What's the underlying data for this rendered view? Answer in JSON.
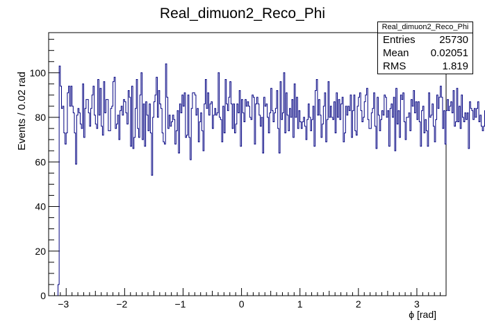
{
  "chart_data": {
    "type": "histogram",
    "title": "Real_dimuon2_Reco_Phi",
    "xlabel": "ϕ [rad]",
    "ylabel": "Events / 0.02 rad",
    "xlim": [
      -3.3,
      3.5
    ],
    "ylim": [
      0,
      118
    ],
    "bin_width": 0.02,
    "x_ticks": [
      "−3",
      "−2",
      "−1",
      "0",
      "1",
      "2",
      "3"
    ],
    "y_ticks": [
      "0",
      "20",
      "40",
      "60",
      "80",
      "100"
    ],
    "line_color": "#000080",
    "x_start": -3.14,
    "values": [
      5,
      103,
      94,
      84,
      85,
      73,
      68,
      73,
      91,
      94,
      85,
      94,
      85,
      82,
      73,
      59,
      81,
      84,
      82,
      77,
      75,
      95,
      71,
      84,
      88,
      88,
      82,
      76,
      84,
      90,
      94,
      81,
      77,
      75,
      97,
      81,
      93,
      76,
      72,
      96,
      82,
      88,
      88,
      74,
      74,
      84,
      85,
      96,
      98,
      75,
      77,
      81,
      70,
      83,
      85,
      81,
      88,
      87,
      82,
      77,
      92,
      89,
      67,
      94,
      66,
      71,
      84,
      97,
      75,
      71,
      90,
      100,
      70,
      86,
      67,
      87,
      81,
      74,
      86,
      73,
      54,
      80,
      87,
      90,
      98,
      80,
      92,
      86,
      84,
      73,
      69,
      68,
      104,
      89,
      75,
      81,
      76,
      78,
      81,
      79,
      68,
      74,
      83,
      64,
      86,
      82,
      90,
      85,
      91,
      71,
      72,
      90,
      71,
      61,
      84,
      91,
      91,
      90,
      81,
      84,
      69,
      78,
      82,
      74,
      65,
      86,
      97,
      84,
      91,
      81,
      86,
      87,
      75,
      81,
      84,
      81,
      82,
      100,
      80,
      79,
      69,
      85,
      73,
      97,
      86,
      83,
      89,
      96,
      86,
      75,
      86,
      73,
      77,
      86,
      82,
      92,
      67,
      88,
      82,
      78,
      88,
      85,
      87,
      85,
      80,
      79,
      90,
      89,
      68,
      86,
      89,
      86,
      81,
      76,
      80,
      64,
      89,
      85,
      86,
      80,
      73,
      82,
      93,
      83,
      78,
      82,
      84,
      92,
      75,
      64,
      96,
      79,
      82,
      100,
      73,
      91,
      81,
      74,
      84,
      80,
      88,
      71,
      95,
      80,
      89,
      75,
      83,
      78,
      75,
      78,
      80,
      76,
      70,
      79,
      86,
      80,
      74,
      79,
      85,
      67,
      92,
      97,
      81,
      88,
      81,
      71,
      77,
      85,
      91,
      69,
      79,
      96,
      80,
      85,
      80,
      79,
      87,
      73,
      91,
      80,
      88,
      79,
      86,
      89,
      69,
      73,
      85,
      81,
      85,
      83,
      90,
      71,
      83,
      90,
      74,
      72,
      85,
      89,
      91,
      83,
      78,
      80,
      87,
      90,
      93,
      79,
      75,
      75,
      82,
      84,
      91,
      76,
      66,
      89,
      81,
      74,
      79,
      83,
      81,
      90,
      89,
      80,
      83,
      67,
      84,
      86,
      80,
      89,
      65,
      93,
      77,
      83,
      71,
      90,
      88,
      91,
      78,
      70,
      80,
      80,
      82,
      74,
      88,
      85,
      92,
      82,
      87,
      79,
      87,
      78,
      67,
      83,
      85,
      73,
      79,
      74,
      67,
      91,
      80,
      81,
      86,
      76,
      69,
      79,
      90,
      84,
      89,
      94,
      89,
      75,
      83,
      68,
      83,
      88,
      83,
      85,
      87,
      82,
      92,
      76,
      78,
      93,
      78,
      85,
      75,
      90,
      80,
      78,
      82,
      79,
      82,
      66,
      87,
      84,
      83,
      79,
      84,
      80,
      84,
      87,
      78,
      81,
      76,
      74,
      76,
      83,
      73,
      81,
      82,
      85,
      85,
      80,
      88,
      92,
      72,
      88,
      84,
      77,
      69,
      91,
      76,
      81,
      79,
      90,
      78,
      81,
      83,
      75,
      91,
      83,
      81,
      88,
      90,
      89,
      84,
      81,
      81,
      96,
      85,
      82,
      84,
      73,
      92,
      79,
      69,
      75,
      85,
      80,
      79,
      82,
      98,
      81,
      83,
      86,
      79,
      90,
      85,
      92,
      75,
      75,
      76,
      81,
      72,
      85,
      82,
      81,
      88,
      78,
      82,
      69,
      83,
      92,
      80,
      90,
      74,
      85,
      89,
      83,
      77,
      73,
      79,
      85,
      70,
      79,
      81,
      79,
      81,
      90,
      85,
      86,
      84,
      79,
      75,
      84,
      79,
      88,
      85,
      85,
      81,
      88,
      83,
      90,
      92,
      85,
      79,
      74,
      66,
      88,
      75,
      68,
      90,
      83,
      76,
      75,
      79,
      88,
      76,
      71,
      71,
      87,
      76,
      78,
      95,
      86,
      96,
      81,
      89,
      82,
      89,
      85,
      74,
      85,
      79,
      73,
      82,
      81,
      82,
      82,
      80,
      84,
      79,
      97,
      76,
      79,
      78,
      85,
      93,
      75,
      85,
      88,
      81,
      76,
      73,
      83,
      84,
      77,
      85,
      88,
      84,
      84,
      98,
      80,
      93,
      89,
      81,
      80,
      74,
      76,
      84,
      83,
      88,
      84,
      83,
      76,
      77,
      93,
      94,
      80,
      88,
      77,
      85,
      84,
      91,
      78,
      83,
      74,
      90,
      77,
      73,
      92,
      76,
      90,
      82,
      84,
      77,
      69,
      79,
      94,
      85,
      86,
      74,
      65,
      88,
      80,
      95,
      90,
      97,
      87,
      84,
      78,
      74,
      87,
      96,
      92,
      92,
      84,
      90,
      85,
      78,
      90,
      86,
      94,
      97,
      87,
      82,
      96,
      91,
      98,
      84,
      101,
      91,
      85,
      97,
      83,
      80,
      90,
      81,
      96,
      83,
      79,
      88,
      82,
      89,
      74,
      86,
      87,
      96,
      84,
      85,
      84,
      68,
      85,
      79,
      78,
      87,
      91,
      69,
      81,
      86,
      82,
      83,
      80,
      85,
      91,
      81,
      83,
      91,
      87,
      82,
      92,
      91,
      77,
      83,
      90,
      91,
      79,
      82,
      89,
      84,
      90,
      89,
      76,
      90,
      80,
      84,
      86,
      70,
      92,
      88,
      82,
      78,
      99,
      100,
      88,
      102,
      87,
      103,
      105,
      94,
      80,
      85,
      98,
      80,
      82,
      78,
      96,
      85,
      77,
      86,
      82,
      83,
      85,
      81,
      79,
      87,
      86,
      76,
      75,
      87,
      79,
      89,
      92,
      87,
      81,
      98,
      85,
      81,
      81,
      94,
      84,
      83,
      97,
      91,
      84,
      94,
      92,
      81,
      102,
      84,
      96,
      90,
      8,
      5
    ]
  },
  "stats_box": {
    "title": "Real_dimuon2_Reco_Phi",
    "entries_label": "Entries",
    "entries_value": "25730",
    "mean_label": "Mean",
    "mean_value": "0.02051",
    "rms_label": "RMS",
    "rms_value": "1.819"
  }
}
